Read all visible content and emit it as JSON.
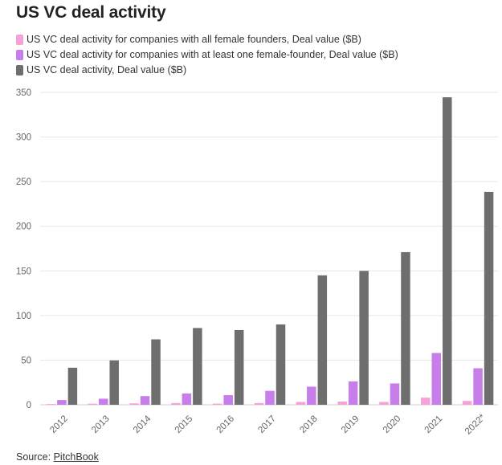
{
  "page": {
    "title": "US VC deal activity",
    "source_label": "Source:",
    "source_name": "PitchBook"
  },
  "chart_data": {
    "type": "bar",
    "title": "US VC deal activity",
    "xlabel": "",
    "ylabel": "",
    "ylim": [
      0,
      350
    ],
    "yticks": [
      0,
      50,
      100,
      150,
      200,
      250,
      300,
      350
    ],
    "grid": true,
    "legend_position": "top-left",
    "categories": [
      "2012",
      "2013",
      "2014",
      "2015",
      "2016",
      "2017",
      "2018",
      "2019",
      "2020",
      "2021",
      "2022*"
    ],
    "series": [
      {
        "name": "US VC deal activity for companies with all female founders, Deal value ($B)",
        "color": "#f5a3d6",
        "values": [
          0.8,
          1.2,
          1.6,
          1.9,
          1.3,
          1.9,
          3.2,
          3.6,
          3.2,
          8.0,
          4.3
        ]
      },
      {
        "name": "US VC deal activity for companies with at least one female-founder, Deal value ($B)",
        "color": "#c77dea",
        "values": [
          5.3,
          6.8,
          9.7,
          12.6,
          10.8,
          15.6,
          20.3,
          26.2,
          23.9,
          58.0,
          40.9
        ]
      },
      {
        "name": "US VC deal activity, Deal value ($B)",
        "color": "#6e6e6e",
        "values": [
          41.5,
          49.7,
          73.3,
          86.0,
          83.7,
          90.0,
          145.0,
          150.0,
          171.0,
          344.5,
          238.5
        ]
      }
    ]
  }
}
